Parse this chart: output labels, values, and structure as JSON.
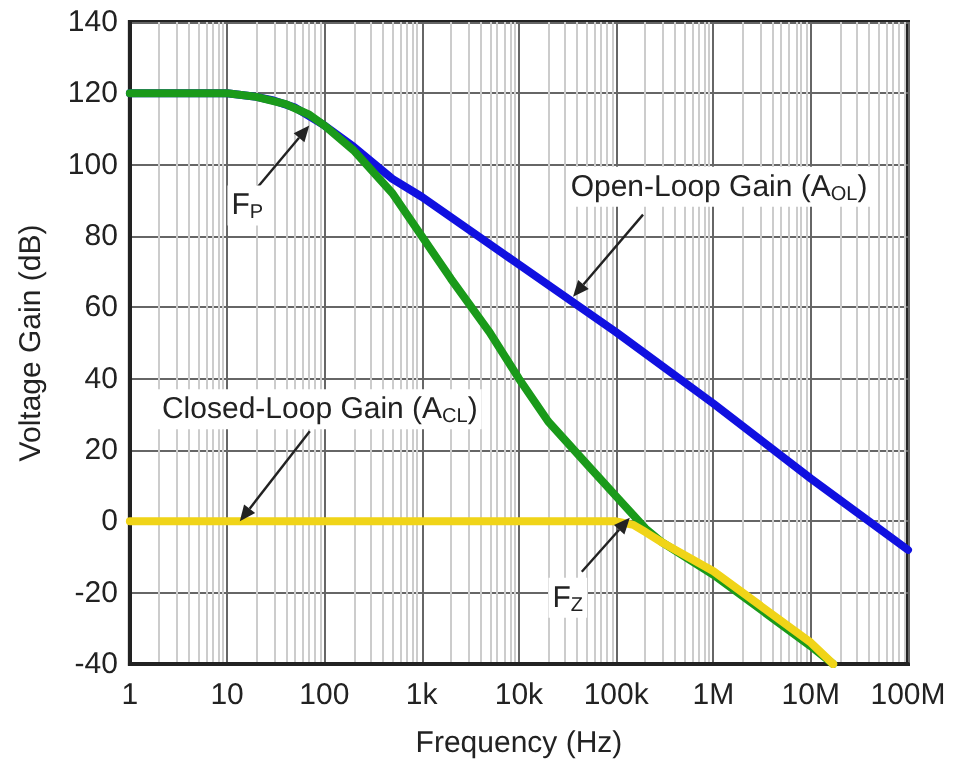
{
  "chart_data": {
    "type": "line",
    "xlabel": "Frequency (Hz)",
    "ylabel": "Voltage Gain (dB)",
    "log": "x",
    "xlim": [
      1,
      100000000
    ],
    "ylim": [
      -40,
      140
    ],
    "xticks": [
      {
        "value": 1,
        "label": "1"
      },
      {
        "value": 10,
        "label": "10"
      },
      {
        "value": 100,
        "label": "100"
      },
      {
        "value": 1000,
        "label": "1k"
      },
      {
        "value": 10000,
        "label": "10k"
      },
      {
        "value": 100000,
        "label": "100k"
      },
      {
        "value": 1000000,
        "label": "1M"
      },
      {
        "value": 10000000,
        "label": "10M"
      },
      {
        "value": 100000000,
        "label": "100M"
      }
    ],
    "yticks": [
      -40,
      -20,
      0,
      20,
      40,
      60,
      80,
      100,
      120,
      140
    ],
    "grid": true,
    "marker": "none",
    "line_style": "solid",
    "series": [
      {
        "color": "#1010e0",
        "x": [
          1,
          10,
          20,
          30,
          50,
          100,
          200,
          500,
          1000,
          10000,
          100000,
          1000000,
          10000000,
          100000000
        ],
        "values": [
          120,
          120,
          119,
          118,
          116,
          111,
          105,
          96,
          91,
          72,
          53,
          33,
          12,
          -8
        ]
      },
      {
        "color": "#1a9a1a",
        "x": [
          1,
          10,
          20,
          40,
          70,
          100,
          200,
          500,
          1000,
          2000,
          5000,
          10000,
          20000,
          50000,
          100000,
          200000,
          300000,
          1000000,
          10000000,
          17000000
        ],
        "values": [
          120,
          120,
          119,
          117,
          114,
          111,
          104,
          92,
          80,
          68,
          53,
          40,
          28,
          16,
          7,
          -2,
          -6,
          -15,
          -35,
          -40
        ]
      },
      {
        "color": "#f0d418",
        "x": [
          1,
          10000,
          50000,
          100000,
          150000,
          200000,
          300000,
          1000000,
          10000000,
          17000000
        ],
        "values": [
          0,
          0,
          0,
          0,
          -1,
          -3,
          -6,
          -14,
          -34,
          -40
        ]
      }
    ],
    "annotations": [
      {
        "text": "Open-Loop Gain (A$_{OL}$)",
        "x": 36000,
        "y": 63
      },
      {
        "text": "Closed-Loop Gain (A$_{CL}$)",
        "x": 13.5,
        "y": 0
      },
      {
        "text": "F$_{P}$",
        "x": 70,
        "y": 111
      },
      {
        "text": "F$_{Z}$",
        "x": 138000,
        "y": 1
      }
    ]
  }
}
